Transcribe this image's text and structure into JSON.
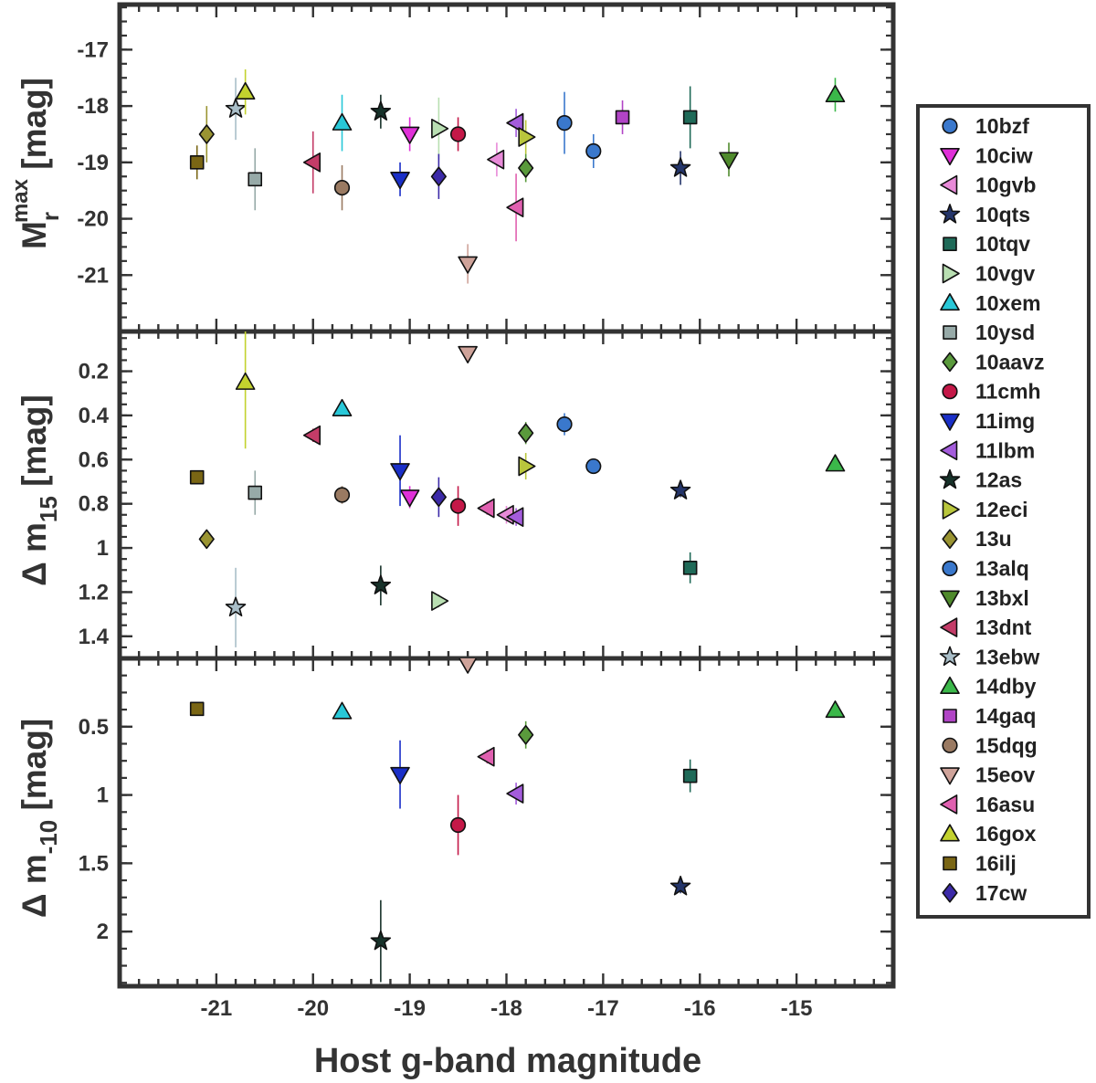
{
  "chart_data": {
    "type": "scatter",
    "xlabel": "Host g-band magnitude",
    "xlim": [
      -22.0,
      -14.0
    ],
    "x_reversed": true,
    "x_ticks": [
      -21,
      -20,
      -19,
      -18,
      -17,
      -16,
      -15
    ],
    "x_tick_labels": [
      "-21",
      "-20",
      "-19",
      "-18",
      "-17",
      "-16",
      "-15"
    ],
    "panels": [
      {
        "name": "peak-magnitude",
        "ylabel": {
          "main": "M",
          "sup": "max",
          "sub": "r",
          "unit": " [mag]"
        },
        "ylim": [
          -16.2,
          -22.0
        ],
        "y_ticks": [
          -21,
          -20,
          -19,
          -18,
          -17
        ],
        "y_tick_labels": [
          "-21",
          "-20",
          "-19",
          "-18",
          "-17"
        ]
      },
      {
        "name": "delta-m15",
        "ylabel": {
          "main": "Δ m",
          "sub": "15",
          "unit": " [mag]"
        },
        "ylim": [
          0.02,
          1.5
        ],
        "y_ticks": [
          0.2,
          0.4,
          0.6,
          0.8,
          1.0,
          1.2,
          1.4
        ],
        "y_tick_labels": [
          "0.2",
          "0.4",
          "0.6",
          "0.8",
          "1",
          "1.2",
          "1.4"
        ]
      },
      {
        "name": "delta-m-10",
        "ylabel": {
          "main": "Δ m",
          "sub": "-10",
          "unit": " [mag]"
        },
        "ylim": [
          0.0,
          2.4
        ],
        "y_ticks": [
          0.5,
          1.0,
          1.5,
          2.0
        ],
        "y_tick_labels": [
          "0.5",
          "1",
          "1.5",
          "2"
        ]
      }
    ],
    "series": [
      {
        "name": "10bzf",
        "marker": "circle",
        "color": "#3a78cc",
        "points": [
          [
            -17.4,
            -18.3,
            0.55,
            null
          ],
          [
            -17.4,
            0.44,
            0.05,
            null
          ]
        ]
      },
      {
        "name": "10ciw",
        "marker": "triangle-down",
        "color": "#e030d8",
        "points": [
          [
            -19.0,
            -18.5,
            0.3,
            null
          ],
          [
            -19.0,
            0.77,
            0.05,
            null
          ]
        ]
      },
      {
        "name": "10gvb",
        "marker": "triangle-left",
        "color": "#e88ad8",
        "points": [
          [
            -18.1,
            -18.95,
            0.3,
            null
          ],
          [
            -18.0,
            0.85,
            0.04,
            null
          ]
        ]
      },
      {
        "name": "10qts",
        "marker": "star",
        "color": "#24356a",
        "points": [
          [
            -16.2,
            -19.1,
            0.3,
            null
          ],
          [
            -16.2,
            0.74,
            0.03,
            null
          ],
          [
            -16.2,
            1.67,
            0.05,
            null
          ]
        ]
      },
      {
        "name": "10tqv",
        "marker": "square",
        "color": "#1f6a58",
        "points": [
          [
            -16.1,
            -18.2,
            0.55,
            null
          ],
          [
            -16.1,
            1.09,
            0.07,
            null
          ],
          [
            -16.1,
            0.86,
            0.12,
            null
          ]
        ]
      },
      {
        "name": "10vgv",
        "marker": "triangle-right",
        "color": "#b9dfb2",
        "points": [
          [
            -18.7,
            -18.4,
            0.55,
            null
          ],
          [
            -18.7,
            1.24,
            0.03,
            null
          ]
        ]
      },
      {
        "name": "10xem",
        "marker": "triangle-up",
        "color": "#28c8d8",
        "points": [
          [
            -19.7,
            -18.3,
            0.5,
            null
          ],
          [
            -19.7,
            0.37,
            0.03,
            null
          ],
          [
            -19.7,
            0.39,
            0.03,
            null
          ]
        ]
      },
      {
        "name": "10ysd",
        "marker": "square",
        "color": "#97aaa8",
        "points": [
          [
            -20.6,
            -19.3,
            0.55,
            null
          ],
          [
            -20.6,
            0.75,
            0.1,
            null
          ]
        ]
      },
      {
        "name": "10aavz",
        "marker": "diamond",
        "color": "#5a9a3c",
        "points": [
          [
            -17.8,
            -19.1,
            0.25,
            null
          ],
          [
            -17.8,
            0.48,
            0.05,
            null
          ],
          [
            -17.8,
            0.56,
            0.1,
            null
          ]
        ]
      },
      {
        "name": "11cmh",
        "marker": "circle",
        "color": "#c41848",
        "points": [
          [
            -18.5,
            -18.5,
            0.3,
            null
          ],
          [
            -18.5,
            0.81,
            0.09,
            null
          ],
          [
            -18.5,
            1.22,
            0.22,
            null
          ]
        ]
      },
      {
        "name": "11img",
        "marker": "triangle-down",
        "color": "#1a2fc8",
        "points": [
          [
            -19.1,
            -19.3,
            0.3,
            null
          ],
          [
            -19.1,
            0.65,
            0.16,
            null
          ],
          [
            -19.1,
            0.85,
            0.25,
            null
          ]
        ]
      },
      {
        "name": "11lbm",
        "marker": "triangle-left",
        "color": "#a45cdc",
        "points": [
          [
            -17.9,
            -18.3,
            0.25,
            null
          ],
          [
            -17.9,
            0.86,
            0.04,
            null
          ],
          [
            -17.9,
            0.99,
            0.08,
            null
          ]
        ]
      },
      {
        "name": "12as",
        "marker": "star",
        "color": "#17322a",
        "points": [
          [
            -19.3,
            -18.1,
            0.3,
            null
          ],
          [
            -19.3,
            1.17,
            0.09,
            null
          ],
          [
            -19.3,
            2.07,
            0.3,
            null
          ]
        ]
      },
      {
        "name": "12eci",
        "marker": "triangle-right",
        "color": "#b9c63c",
        "points": [
          [
            -17.8,
            -18.55,
            0.3,
            null
          ],
          [
            -17.8,
            0.63,
            0.06,
            null
          ]
        ]
      },
      {
        "name": "13u",
        "marker": "diamond",
        "color": "#9a9432",
        "points": [
          [
            -21.1,
            -18.5,
            0.5,
            null
          ],
          [
            -21.1,
            0.96,
            0.03,
            null
          ]
        ]
      },
      {
        "name": "13alq",
        "marker": "circle",
        "color": "#3a78cc",
        "points": [
          [
            -17.1,
            -18.8,
            0.3,
            null
          ],
          [
            -17.1,
            0.63,
            0.03,
            null
          ]
        ]
      },
      {
        "name": "13bxl",
        "marker": "triangle-down",
        "color": "#4f8a2c",
        "points": [
          [
            -15.7,
            -18.95,
            0.3,
            null
          ]
        ]
      },
      {
        "name": "13dnt",
        "marker": "triangle-left",
        "color": "#c43c68",
        "points": [
          [
            -20.0,
            -19.0,
            0.55,
            null
          ],
          [
            -20.0,
            0.49,
            0.03,
            null
          ]
        ]
      },
      {
        "name": "13ebw",
        "marker": "star",
        "color": "#a9bec8",
        "points": [
          [
            -20.8,
            -18.05,
            0.55,
            null
          ],
          [
            -20.8,
            1.27,
            0.18,
            null
          ]
        ]
      },
      {
        "name": "14dby",
        "marker": "triangle-up",
        "color": "#3bb84a",
        "points": [
          [
            -14.6,
            -17.8,
            0.3,
            null
          ],
          [
            -14.6,
            0.62,
            0.03,
            null
          ],
          [
            -14.6,
            0.38,
            0.02,
            null
          ]
        ]
      },
      {
        "name": "14gaq",
        "marker": "square",
        "color": "#b144c6",
        "points": [
          [
            -16.8,
            -18.2,
            0.3,
            null
          ]
        ]
      },
      {
        "name": "15dqg",
        "marker": "circle",
        "color": "#9a7a62",
        "points": [
          [
            -19.7,
            -19.45,
            0.4,
            null
          ],
          [
            -19.7,
            0.76,
            0.04,
            null
          ]
        ]
      },
      {
        "name": "15eov",
        "marker": "triangle-down",
        "color": "#cfa39a",
        "points": [
          [
            -18.4,
            -20.8,
            0.35,
            null
          ],
          [
            -18.4,
            0.12,
            0.03,
            null
          ],
          [
            -18.4,
            0.04,
            0.03,
            null
          ]
        ]
      },
      {
        "name": "16asu",
        "marker": "triangle-left",
        "color": "#e060b0",
        "points": [
          [
            -17.9,
            -19.8,
            0.6,
            null
          ],
          [
            -18.2,
            0.82,
            0.03,
            null
          ],
          [
            -18.2,
            0.72,
            0.05,
            null
          ]
        ]
      },
      {
        "name": "16gox",
        "marker": "triangle-up",
        "color": "#c3d22e",
        "points": [
          [
            -20.7,
            -17.75,
            0.4,
            null
          ],
          [
            -20.7,
            0.25,
            0.3,
            null
          ]
        ]
      },
      {
        "name": "16ilj",
        "marker": "square",
        "color": "#7a6614",
        "points": [
          [
            -21.2,
            -19.0,
            0.3,
            null
          ],
          [
            -21.2,
            0.68,
            0.03,
            null
          ],
          [
            -21.2,
            0.37,
            0.03,
            null
          ]
        ]
      },
      {
        "name": "17cw",
        "marker": "diamond",
        "color": "#3c2aa8",
        "points": [
          [
            -18.7,
            -19.25,
            0.4,
            null
          ],
          [
            -18.7,
            0.77,
            0.09,
            null
          ]
        ]
      }
    ]
  }
}
